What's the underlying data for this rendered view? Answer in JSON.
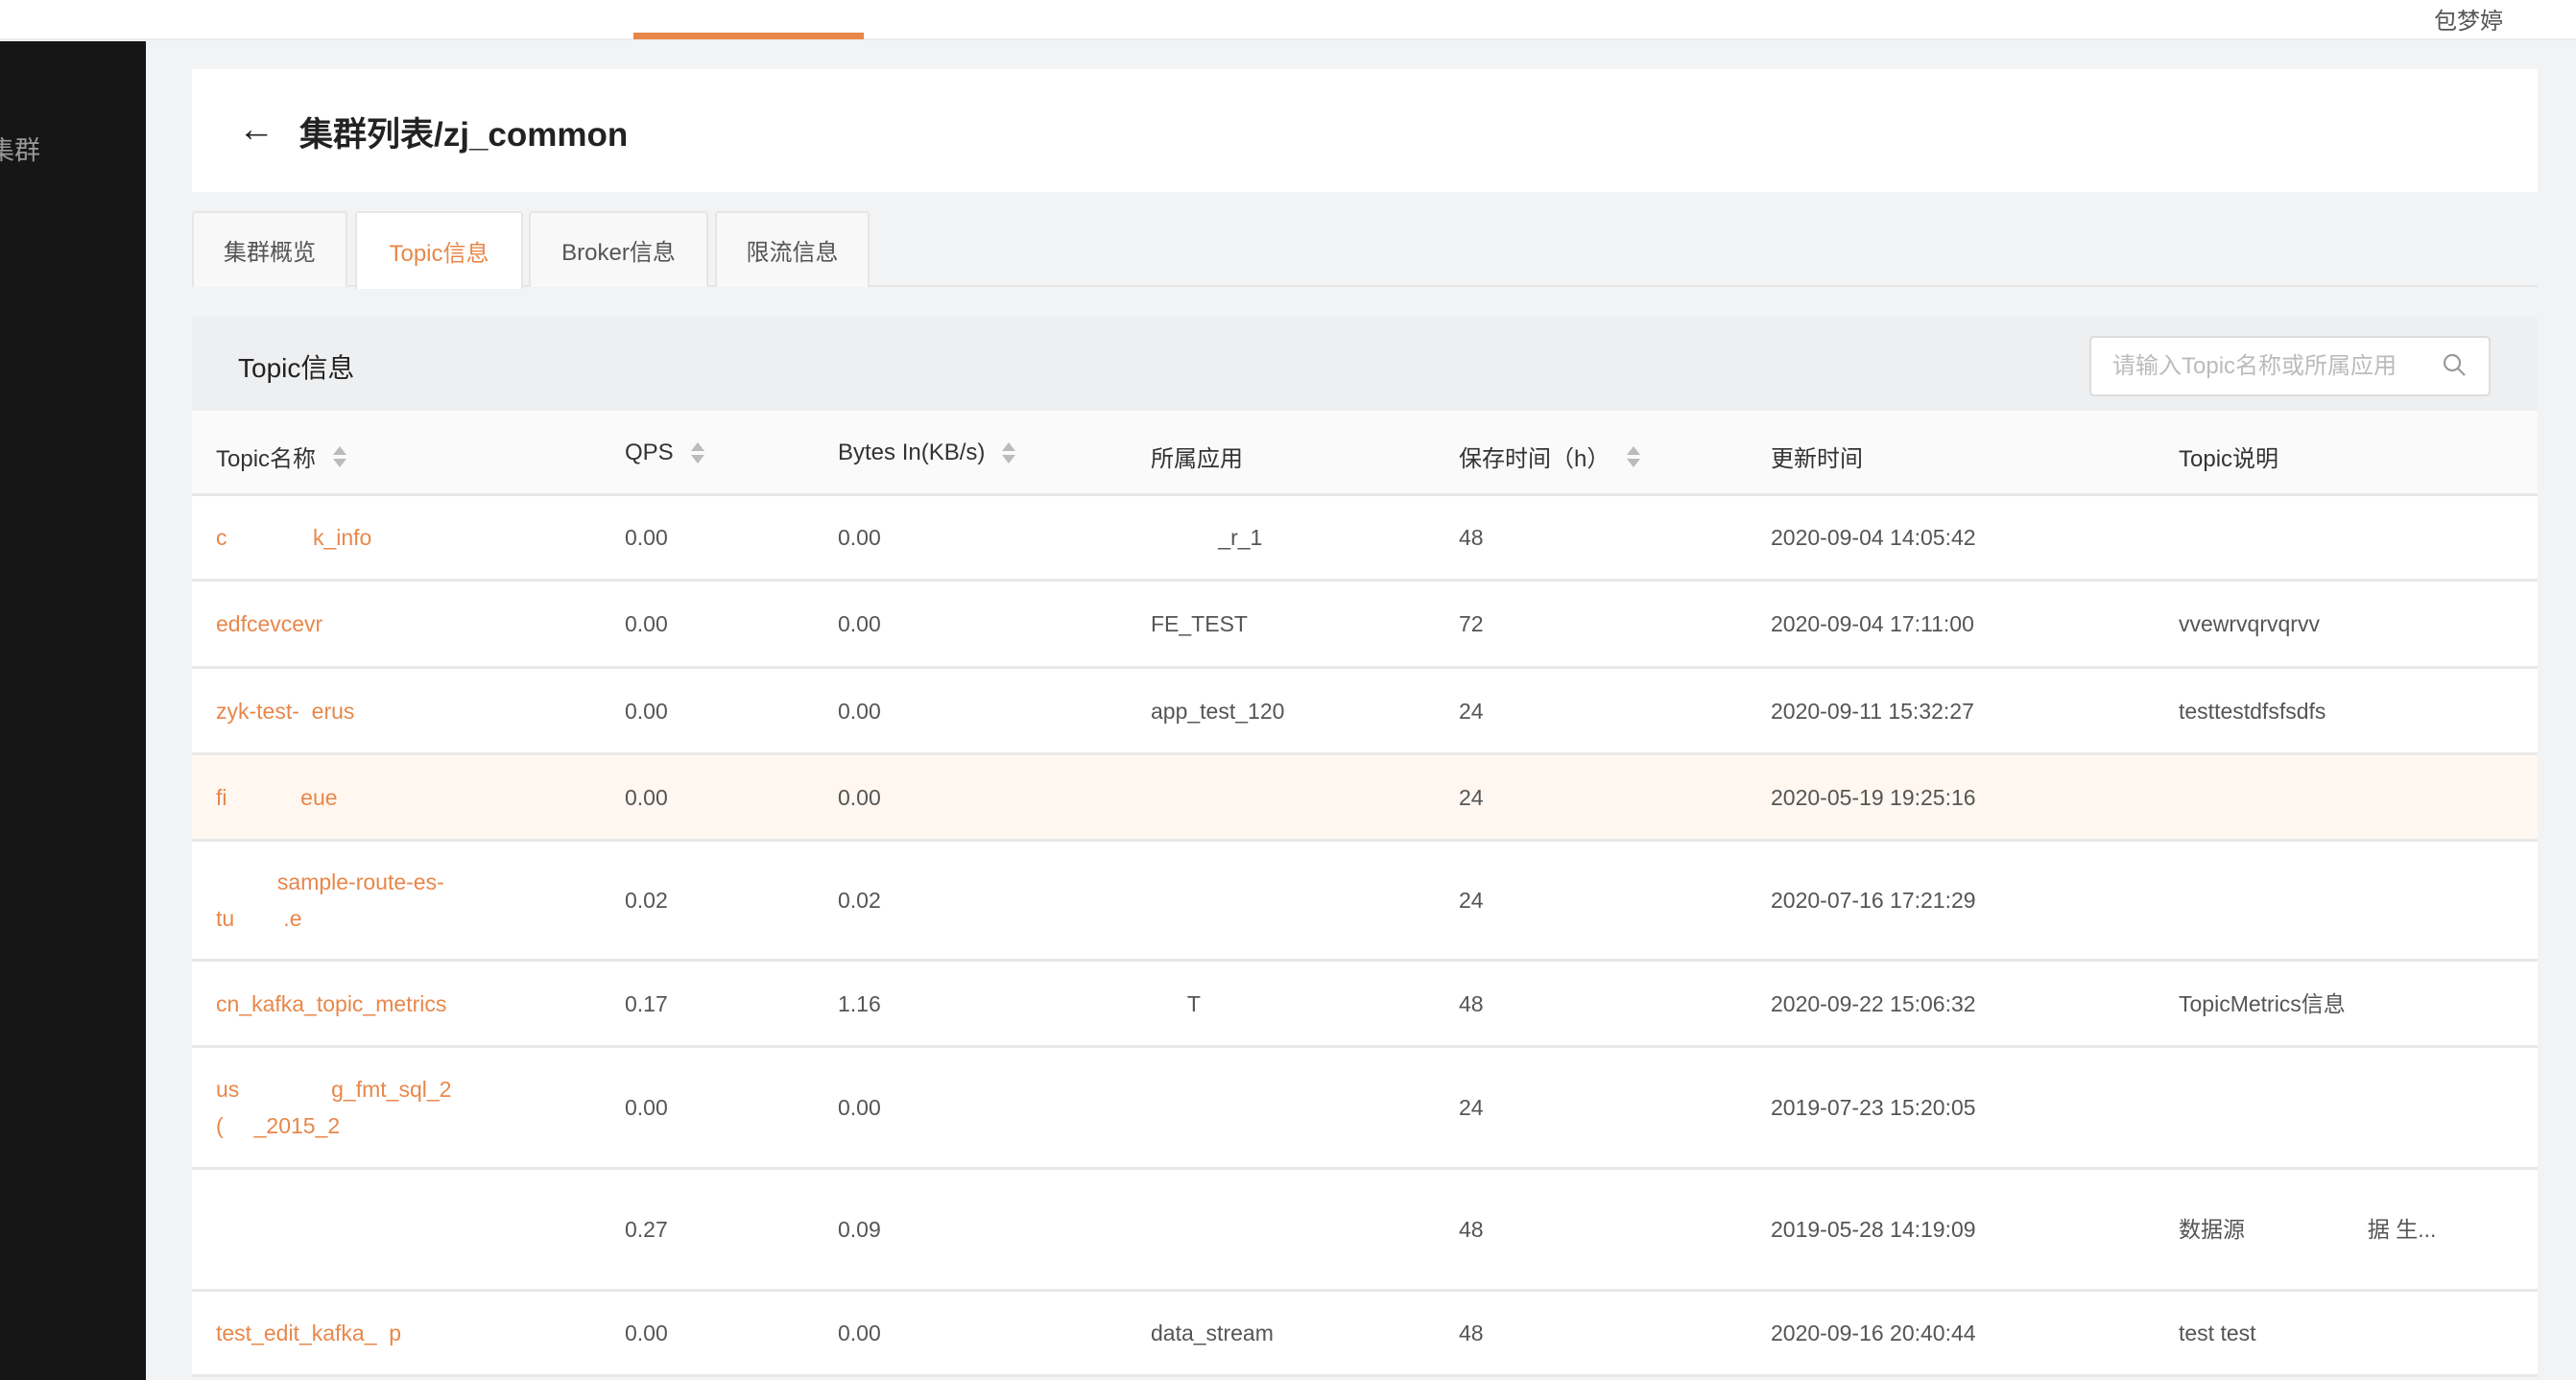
{
  "topbar": {
    "user": "包梦婷"
  },
  "sidebar": {
    "items": [
      {
        "label": "集群"
      }
    ]
  },
  "header": {
    "title": "集群列表/zj_common"
  },
  "tabs": [
    {
      "label": "集群概览"
    },
    {
      "label": "Topic信息",
      "active": true
    },
    {
      "label": "Broker信息"
    },
    {
      "label": "限流信息"
    }
  ],
  "panel": {
    "title": "Topic信息",
    "search_placeholder": "请输入Topic名称或所属应用",
    "search_value": ""
  },
  "colors": {
    "accent": "#e8874a",
    "sidebar": "#161616",
    "highlight_row": "#fff7f0"
  },
  "table": {
    "columns": [
      {
        "label": "Topic名称",
        "sortable": true
      },
      {
        "label": "QPS",
        "sortable": true
      },
      {
        "label": "Bytes In(KB/s)",
        "sortable": true
      },
      {
        "label": "所属应用",
        "sortable": false
      },
      {
        "label": "保存时间（h）",
        "sortable": true
      },
      {
        "label": "更新时间",
        "sortable": false
      },
      {
        "label": "Topic说明",
        "sortable": false
      }
    ],
    "rows": [
      {
        "name": "c              k_info",
        "qps": "0.00",
        "bytes": "0.00",
        "app": "           _r_1",
        "retention": "48",
        "updated": "2020-09-04 14:05:42",
        "desc": ""
      },
      {
        "name": "edfcevcevr",
        "qps": "0.00",
        "bytes": "0.00",
        "app": "FE_TEST",
        "retention": "72",
        "updated": "2020-09-04 17:11:00",
        "desc": "vvewrvqrvqrvv"
      },
      {
        "name": "zyk-test-  erus",
        "qps": "0.00",
        "bytes": "0.00",
        "app": "app_test_120",
        "retention": "24",
        "updated": "2020-09-11 15:32:27",
        "desc": "testtestdfsfsdfs"
      },
      {
        "name": "fi            eue",
        "qps": "0.00",
        "bytes": "0.00",
        "app": "",
        "retention": "24",
        "updated": "2020-05-19 19:25:16",
        "desc": "",
        "highlight": true
      },
      {
        "name": "          sample-route-es-\ntu        .e",
        "qps": "0.02",
        "bytes": "0.02",
        "app": "",
        "retention": "24",
        "updated": "2020-07-16 17:21:29",
        "desc": ""
      },
      {
        "name": "cn_kafka_topic_metrics",
        "qps": "0.17",
        "bytes": "1.16",
        "app": "      T",
        "retention": "48",
        "updated": "2020-09-22 15:06:32",
        "desc": "TopicMetrics信息"
      },
      {
        "name": "us               g_fmt_sql_2\n(     _2015_2",
        "qps": "0.00",
        "bytes": "0.00",
        "app": "",
        "retention": "24",
        "updated": "2019-07-23 15:20:05",
        "desc": ""
      },
      {
        "name": "",
        "qps": "0.27",
        "bytes": "0.09",
        "app": "",
        "retention": "48",
        "updated": "2019-05-28 14:19:09",
        "desc": "数据源                    据 生..."
      },
      {
        "name": "test_edit_kafka_  p",
        "qps": "0.00",
        "bytes": "0.00",
        "app": "data_stream",
        "retention": "48",
        "updated": "2020-09-16 20:40:44",
        "desc": "test test"
      }
    ]
  }
}
